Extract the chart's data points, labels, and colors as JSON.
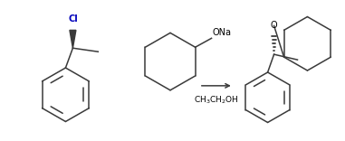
{
  "bg_color": "#ffffff",
  "line_color": "#3a3a3a",
  "text_color": "#000000",
  "cl_color": "#0000bb",
  "arrow_color": "#3a3a3a",
  "fig_width": 3.81,
  "fig_height": 1.56,
  "dpi": 100,
  "reagent_text": "CH$_3$CH$_2$OH",
  "ona_text": "ONa",
  "cl_text": "Cl",
  "o_text": "O"
}
